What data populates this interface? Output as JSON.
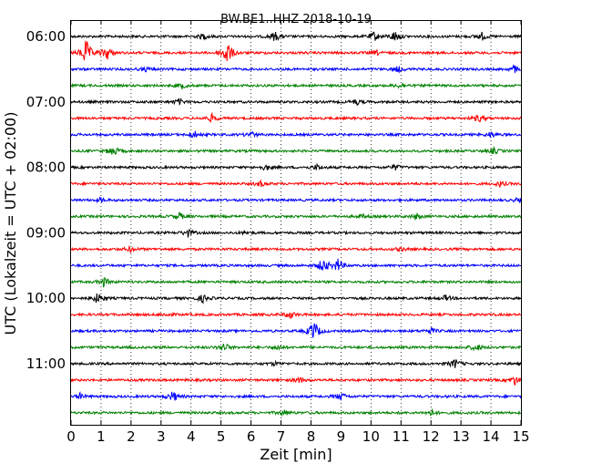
{
  "chart_data": {
    "type": "line",
    "title": "BW.BE1..HHZ 2018-10-19",
    "xlabel": "Zeit  [min]",
    "ylabel": "UTC (Lokalzeit = UTC + 02:00)",
    "xlim": [
      0,
      15
    ],
    "x_ticks": [
      "0",
      "1",
      "2",
      "3",
      "4",
      "5",
      "6",
      "7",
      "8",
      "9",
      "10",
      "11",
      "12",
      "13",
      "14",
      "15"
    ],
    "y_ticks": [
      {
        "label": "06:00",
        "trace": 0
      },
      {
        "label": "07:00",
        "trace": 4
      },
      {
        "label": "08:00",
        "trace": 8
      },
      {
        "label": "09:00",
        "trace": 12
      },
      {
        "label": "10:00",
        "trace": 16
      },
      {
        "label": "11:00",
        "trace": 20
      }
    ],
    "grid": "vertical-dotted",
    "trace_interval_min": 15,
    "color_cycle": [
      "#000000",
      "#ff0000",
      "#0000ff",
      "#008000"
    ],
    "traces": [
      {
        "start": "06:00",
        "color": "#000000",
        "events": [
          [
            4.4,
            0.3
          ],
          [
            6.8,
            0.5
          ],
          [
            10.1,
            0.5
          ],
          [
            10.8,
            0.6
          ],
          [
            13.7,
            0.4
          ]
        ]
      },
      {
        "start": "06:15",
        "color": "#ff0000",
        "events": [
          [
            0.5,
            1.5
          ],
          [
            1.2,
            0.8
          ],
          [
            5.2,
            1.5
          ],
          [
            10.2,
            0.2
          ]
        ]
      },
      {
        "start": "06:30",
        "color": "#0000ff",
        "events": [
          [
            2.5,
            0.2
          ],
          [
            10.9,
            0.3
          ],
          [
            14.8,
            0.4
          ]
        ]
      },
      {
        "start": "06:45",
        "color": "#008000",
        "events": [
          [
            3.7,
            0.3
          ],
          [
            11.0,
            0.3
          ]
        ]
      },
      {
        "start": "07:00",
        "color": "#000000",
        "events": [
          [
            3.6,
            0.3
          ],
          [
            9.5,
            0.3
          ]
        ]
      },
      {
        "start": "07:15",
        "color": "#ff0000",
        "events": [
          [
            4.7,
            0.4
          ],
          [
            13.6,
            0.4
          ]
        ]
      },
      {
        "start": "07:30",
        "color": "#0000ff",
        "events": [
          [
            4.1,
            0.4
          ],
          [
            6.0,
            0.3
          ],
          [
            14.0,
            0.3
          ]
        ]
      },
      {
        "start": "07:45",
        "color": "#008000",
        "events": [
          [
            1.4,
            0.6
          ],
          [
            14.1,
            0.3
          ]
        ]
      },
      {
        "start": "08:00",
        "color": "#000000",
        "events": [
          [
            6.5,
            0.3
          ],
          [
            8.2,
            0.3
          ],
          [
            10.8,
            0.3
          ]
        ]
      },
      {
        "start": "08:15",
        "color": "#ff0000",
        "events": [
          [
            6.3,
            0.3
          ],
          [
            14.3,
            0.3
          ]
        ]
      },
      {
        "start": "08:30",
        "color": "#0000ff",
        "events": [
          [
            1.0,
            0.2
          ],
          [
            14.9,
            0.2
          ]
        ]
      },
      {
        "start": "08:45",
        "color": "#008000",
        "events": [
          [
            3.6,
            0.4
          ],
          [
            9.7,
            0.2
          ],
          [
            11.5,
            0.3
          ]
        ]
      },
      {
        "start": "09:00",
        "color": "#000000",
        "events": [
          [
            3.9,
            0.4
          ],
          [
            5.8,
            0.2
          ]
        ]
      },
      {
        "start": "09:15",
        "color": "#ff0000",
        "events": [
          [
            2.0,
            0.3
          ],
          [
            11.0,
            0.2
          ]
        ]
      },
      {
        "start": "09:30",
        "color": "#0000ff",
        "events": [
          [
            8.4,
            0.8
          ],
          [
            8.9,
            0.7
          ]
        ]
      },
      {
        "start": "09:45",
        "color": "#008000",
        "events": [
          [
            1.1,
            0.5
          ]
        ]
      },
      {
        "start": "10:00",
        "color": "#000000",
        "events": [
          [
            0.9,
            0.6
          ],
          [
            4.4,
            0.4
          ],
          [
            12.5,
            0.3
          ]
        ]
      },
      {
        "start": "10:15",
        "color": "#ff0000",
        "events": [
          [
            3.2,
            0.2
          ],
          [
            7.3,
            0.4
          ]
        ]
      },
      {
        "start": "10:30",
        "color": "#0000ff",
        "events": [
          [
            8.1,
            1.2
          ],
          [
            12.0,
            0.3
          ]
        ]
      },
      {
        "start": "10:45",
        "color": "#008000",
        "events": [
          [
            5.1,
            0.5
          ],
          [
            6.9,
            0.3
          ],
          [
            13.5,
            0.4
          ]
        ]
      },
      {
        "start": "11:00",
        "color": "#000000",
        "events": [
          [
            6.8,
            0.2
          ],
          [
            12.8,
            0.5
          ]
        ]
      },
      {
        "start": "11:15",
        "color": "#ff0000",
        "events": [
          [
            7.6,
            0.3
          ],
          [
            14.8,
            0.5
          ]
        ]
      },
      {
        "start": "11:30",
        "color": "#0000ff",
        "events": [
          [
            0.3,
            0.3
          ],
          [
            3.4,
            0.6
          ],
          [
            9.0,
            0.4
          ]
        ]
      },
      {
        "start": "11:45",
        "color": "#008000",
        "events": [
          [
            7.1,
            0.3
          ],
          [
            12.0,
            0.3
          ]
        ]
      }
    ]
  }
}
